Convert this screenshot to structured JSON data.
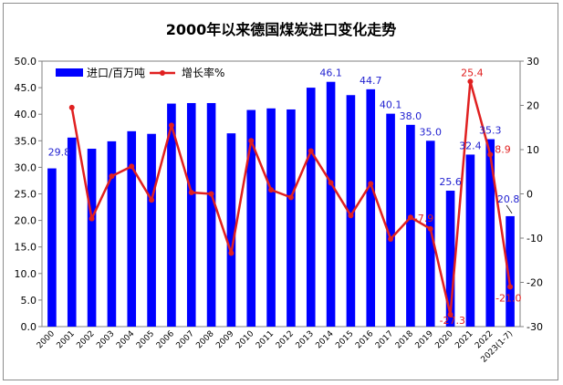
{
  "chart_data": {
    "type": "bar",
    "title": "2000年以来德国煤炭进口变化走势",
    "categories": [
      "2000",
      "2001",
      "2002",
      "2003",
      "2004",
      "2005",
      "2006",
      "2007",
      "2008",
      "2009",
      "2010",
      "2011",
      "2012",
      "2013",
      "2014",
      "2015",
      "2016",
      "2017",
      "2018",
      "2019",
      "2020",
      "2021",
      "2022",
      "2023(1-7)"
    ],
    "series": [
      {
        "name": "进口/百万吨",
        "type": "bar",
        "axis": "left",
        "color": "#0000ff",
        "values": [
          29.8,
          35.6,
          33.5,
          34.9,
          36.8,
          36.3,
          42.0,
          42.1,
          42.1,
          36.4,
          40.8,
          41.1,
          40.9,
          45.0,
          46.1,
          43.6,
          44.7,
          40.1,
          38.0,
          35.0,
          25.6,
          32.4,
          35.3,
          20.8
        ]
      },
      {
        "name": "增长率%",
        "type": "line",
        "axis": "right",
        "color": "#e02020",
        "values": [
          null,
          19.5,
          -5.6,
          4.0,
          6.2,
          -1.4,
          15.5,
          0.3,
          0.0,
          -13.4,
          12.0,
          0.9,
          -0.8,
          9.7,
          2.5,
          -4.9,
          2.3,
          -10.2,
          -5.3,
          -7.9,
          -27.3,
          25.4,
          8.9,
          -21.0
        ]
      }
    ],
    "bar_labels": [
      {
        "index": 0,
        "text": "29.8"
      },
      {
        "index": 14,
        "text": "46.1"
      },
      {
        "index": 16,
        "text": "44.7"
      },
      {
        "index": 17,
        "text": "40.1"
      },
      {
        "index": 18,
        "text": "38.0"
      },
      {
        "index": 19,
        "text": "35.0"
      },
      {
        "index": 20,
        "text": "25.6"
      },
      {
        "index": 21,
        "text": "32.4"
      },
      {
        "index": 22,
        "text": "35.3"
      },
      {
        "index": 23,
        "text": "20.8"
      }
    ],
    "line_labels": [
      {
        "index": 19,
        "text": "-7.9"
      },
      {
        "index": 20,
        "text": "-27.3"
      },
      {
        "index": 21,
        "text": "25.4"
      },
      {
        "index": 22,
        "text": "8.9"
      },
      {
        "index": 23,
        "text": "-21.0"
      }
    ],
    "left_axis": {
      "min": 0,
      "max": 50,
      "step": 5,
      "decimals": 1
    },
    "right_axis": {
      "min": -30,
      "max": 30,
      "step": 10,
      "decimals": 0
    },
    "legend_position": "top-left",
    "grid": false
  }
}
